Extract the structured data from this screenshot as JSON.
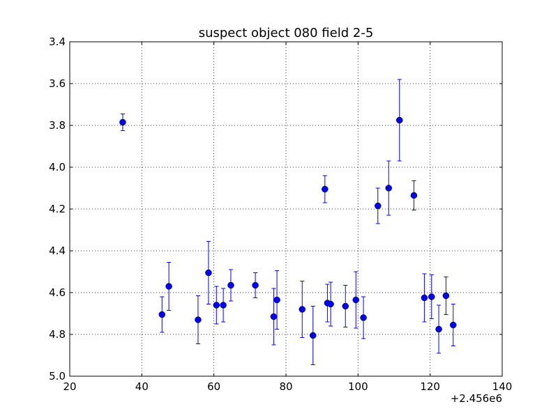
{
  "chart_data": {
    "type": "scatter",
    "title": "suspect object 080 field 2-5",
    "xlabel": "",
    "ylabel": "",
    "x_offset_label": "+2.456e6",
    "xlim": [
      20,
      140
    ],
    "ylim": [
      3.4,
      5.0
    ],
    "y_inverted": true,
    "grid": true,
    "x_ticks": [
      20,
      40,
      60,
      80,
      100,
      120,
      140
    ],
    "x_tick_labels": [
      "20",
      "40",
      "60",
      "80",
      "100",
      "120",
      "140"
    ],
    "y_ticks": [
      3.4,
      3.6,
      3.8,
      4.0,
      4.2,
      4.4,
      4.6,
      4.8,
      5.0
    ],
    "y_tick_labels": [
      "3.4",
      "3.6",
      "3.8",
      "4.0",
      "4.2",
      "4.4",
      "4.6",
      "4.8",
      "5.0"
    ],
    "marker_color": "#0000ff",
    "series": [
      {
        "points": [
          {
            "x": 34.7,
            "y": 3.785,
            "err": 0.04
          },
          {
            "x": 45.6,
            "y": 4.705,
            "err": 0.085
          },
          {
            "x": 47.5,
            "y": 4.57,
            "err": 0.115
          },
          {
            "x": 55.6,
            "y": 4.73,
            "err": 0.115
          },
          {
            "x": 58.5,
            "y": 4.505,
            "err": 0.15
          },
          {
            "x": 60.7,
            "y": 4.66,
            "err": 0.09
          },
          {
            "x": 62.6,
            "y": 4.66,
            "err": 0.08
          },
          {
            "x": 64.7,
            "y": 4.565,
            "err": 0.075
          },
          {
            "x": 71.5,
            "y": 4.565,
            "err": 0.06
          },
          {
            "x": 76.6,
            "y": 4.715,
            "err": 0.135
          },
          {
            "x": 77.5,
            "y": 4.635,
            "err": 0.14
          },
          {
            "x": 84.5,
            "y": 4.68,
            "err": 0.135
          },
          {
            "x": 87.5,
            "y": 4.805,
            "err": 0.14
          },
          {
            "x": 90.8,
            "y": 4.105,
            "err": 0.065
          },
          {
            "x": 91.5,
            "y": 4.65,
            "err": 0.09
          },
          {
            "x": 92.4,
            "y": 4.655,
            "err": 0.105
          },
          {
            "x": 96.5,
            "y": 4.665,
            "err": 0.1
          },
          {
            "x": 99.4,
            "y": 4.635,
            "err": 0.135
          },
          {
            "x": 101.5,
            "y": 4.72,
            "err": 0.1
          },
          {
            "x": 105.5,
            "y": 4.185,
            "err": 0.085
          },
          {
            "x": 108.5,
            "y": 4.1,
            "err": 0.13
          },
          {
            "x": 111.5,
            "y": 3.775,
            "err": 0.195
          },
          {
            "x": 115.5,
            "y": 4.135,
            "err": 0.07
          },
          {
            "x": 118.4,
            "y": 4.625,
            "err": 0.115
          },
          {
            "x": 120.4,
            "y": 4.62,
            "err": 0.105
          },
          {
            "x": 122.4,
            "y": 4.775,
            "err": 0.115
          },
          {
            "x": 124.4,
            "y": 4.615,
            "err": 0.09
          },
          {
            "x": 126.4,
            "y": 4.755,
            "err": 0.1
          }
        ]
      }
    ]
  }
}
